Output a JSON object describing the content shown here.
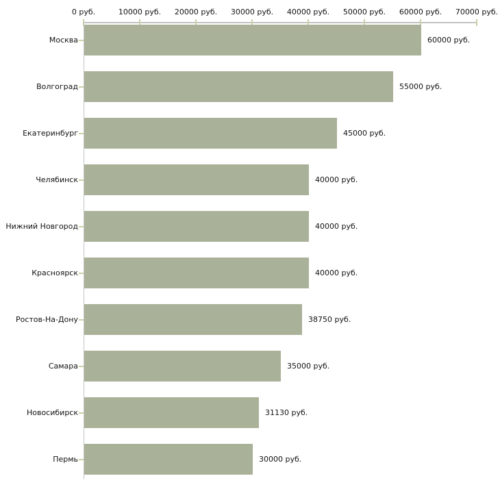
{
  "chart_data": {
    "type": "bar",
    "orientation": "horizontal",
    "categories": [
      "Москва",
      "Волгоград",
      "Екатеринбург",
      "Челябинск",
      "Нижний Новгород",
      "Красноярск",
      "Ростов-На-Дону",
      "Самара",
      "Новосибирск",
      "Пермь"
    ],
    "values": [
      60000,
      55000,
      45000,
      40000,
      40000,
      40000,
      38750,
      35000,
      31130,
      30000
    ],
    "value_labels": [
      "60000 руб.",
      "55000 руб.",
      "45000 руб.",
      "40000 руб.",
      "40000 руб.",
      "40000 руб.",
      "38750 руб.",
      "35000 руб.",
      "31130 руб.",
      "30000 руб."
    ],
    "x_axis": {
      "position": "top",
      "min": 0,
      "max": 70000,
      "ticks": [
        0,
        10000,
        20000,
        30000,
        40000,
        50000,
        60000,
        70000
      ],
      "tick_labels": [
        "0 руб.",
        "10000 руб.",
        "20000 руб.",
        "30000 руб.",
        "40000 руб.",
        "50000 руб.",
        "60000 руб.",
        "70000 руб."
      ]
    },
    "grid": false,
    "legend": false,
    "colors": {
      "bar": "#aab199",
      "axis_line": "#c3c3c3",
      "tick": "#cdd0a6",
      "text": "#111111",
      "background": "#ffffff"
    }
  }
}
